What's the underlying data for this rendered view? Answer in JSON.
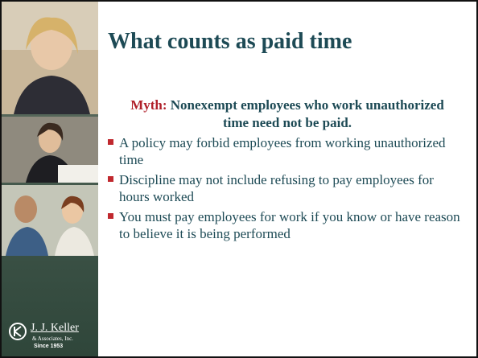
{
  "slide": {
    "title": "What counts as paid time",
    "myth": {
      "label": "Myth:",
      "text": "Nonexempt employees who work unauthorized time need not be paid."
    },
    "bullets": [
      "A policy may forbid employees from working unauthorized time",
      "Discipline may not include refusing to pay employees for hours worked",
      "You must pay employees for work if you know or have reason to believe it is being performed"
    ],
    "logo": {
      "name": "J. J. Keller",
      "sub": "& Associates, Inc.",
      "since": "Since 1953"
    }
  }
}
